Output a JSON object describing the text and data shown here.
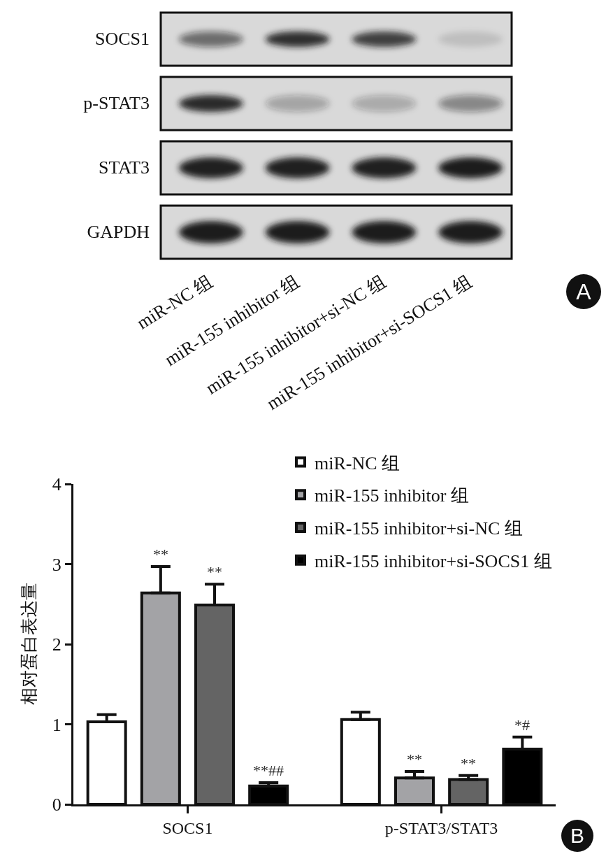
{
  "chart_data": [
    {
      "type": "other",
      "categories": [
        "miR-NC 组",
        "miR-155 inhibitor 组",
        "miR-155 inhibitor+si-NC 组",
        "miR-155 inhibitor+si-SOCS1 组"
      ],
      "y_categories": [
        "SOCS1",
        "p-STAT3",
        "STAT3",
        "GAPDH"
      ],
      "annotations": [
        "A"
      ]
    },
    {
      "type": "bar",
      "categories": [
        "SOCS1",
        "p-STAT3/STAT3"
      ],
      "ylabel": "相对蛋白表达量",
      "ylim": [
        0,
        4
      ],
      "yticks": [
        0,
        1,
        2,
        3,
        4
      ],
      "legend": "top right",
      "series": [
        {
          "name": "miR-NC 组",
          "color": "#ffffff",
          "values": [
            1.03,
            1.06
          ],
          "errors": [
            [
              1.03,
              1.12
            ],
            [
              1.06,
              1.15
            ]
          ]
        },
        {
          "name": "miR-155 inhibitor 组",
          "color": "#a3a3a6",
          "values": [
            2.64,
            0.33
          ],
          "errors": [
            [
              2.64,
              2.97
            ],
            [
              0.33,
              0.41
            ]
          ],
          "value_labels": [
            "**",
            "**"
          ]
        },
        {
          "name": "miR-155 inhibitor+si-NC 组",
          "color": "#646464",
          "values": [
            2.49,
            0.31
          ],
          "errors": [
            [
              2.49,
              2.75
            ],
            [
              0.31,
              0.36
            ]
          ],
          "value_labels": [
            "**",
            "**"
          ]
        },
        {
          "name": "miR-155 inhibitor+si-SOCS1 组",
          "color": "#000000",
          "values": [
            0.23,
            0.69
          ],
          "errors": [
            [
              0.23,
              0.27
            ],
            [
              0.69,
              0.84
            ]
          ],
          "value_labels": [
            "**##",
            "*#"
          ]
        }
      ],
      "annotations": [
        "B"
      ]
    }
  ]
}
